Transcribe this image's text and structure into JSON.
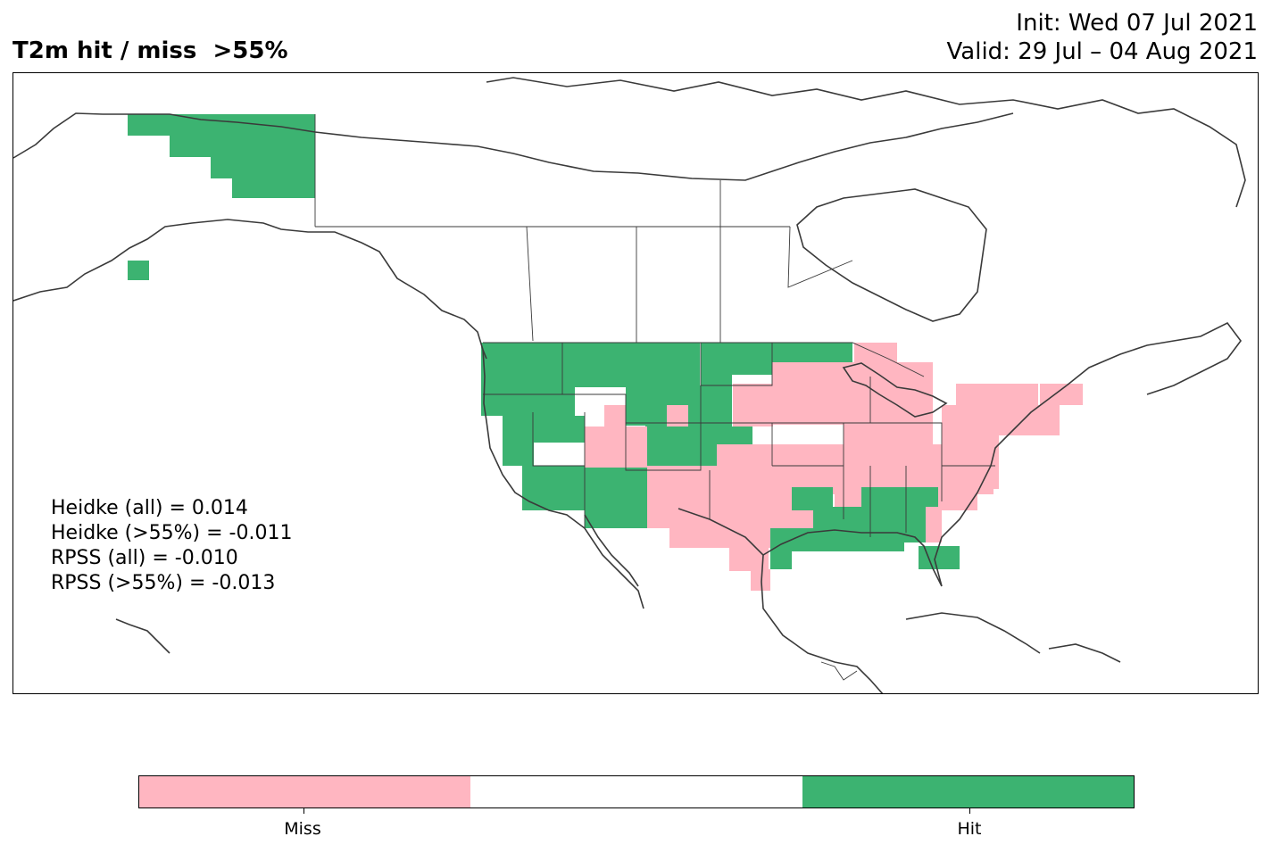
{
  "header": {
    "title": "T2m hit / miss  >55%",
    "init": "Init: Wed 07 Jul 2021",
    "valid": "Valid: 29 Jul – 04 Aug 2021"
  },
  "scores": [
    "Heidke (all) = 0.014",
    "Heidke (>55%) = -0.011",
    "RPSS (all) = -0.010",
    "RPSS (>55%) = -0.013"
  ],
  "legend": {
    "colors": {
      "miss": "#ffb6c1",
      "neutral": "#ffffff",
      "hit": "#3cb371"
    },
    "labels": {
      "miss": "Miss",
      "hit": "Hit"
    }
  },
  "map": {
    "region": "North America",
    "coastline_color": "#3a3a3a"
  }
}
